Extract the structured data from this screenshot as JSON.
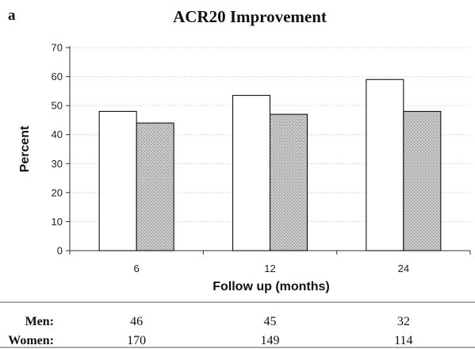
{
  "panel_letter": "a",
  "chart_data": {
    "type": "bar",
    "title": "ACR20 Improvement",
    "xlabel": "Follow up (months)",
    "ylabel": "Percent",
    "categories": [
      "6",
      "12",
      "24"
    ],
    "ylim": [
      0,
      70
    ],
    "yticks": [
      "0",
      "10",
      "20",
      "30",
      "40",
      "50",
      "60",
      "70"
    ],
    "grid": true,
    "legend": "none",
    "series": [
      {
        "values": [
          48,
          53.5,
          59
        ],
        "color": "#ffffff",
        "pattern": "none"
      },
      {
        "values": [
          44,
          47,
          48
        ],
        "color": "#b8b8b8",
        "pattern": "stipple"
      }
    ]
  },
  "table": {
    "rows": [
      {
        "label": "Men:",
        "values": [
          "46",
          "45",
          "32"
        ]
      },
      {
        "label": "Women:",
        "values": [
          "170",
          "149",
          "114"
        ]
      }
    ]
  }
}
